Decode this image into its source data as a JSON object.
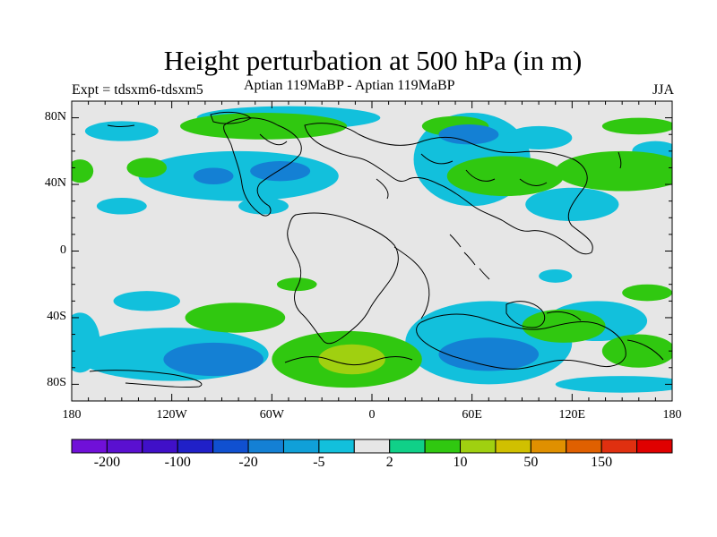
{
  "title": "Height perturbation at 500 hPa (in m)",
  "experiment": "Expt = tdsxm6-tdsxm5",
  "subtitle": "Aptian   119MaBP - Aptian   119MaBP",
  "season": "JJA",
  "map": {
    "type": "filled-contour",
    "lon_range": [
      -180,
      180
    ],
    "lat_range": [
      -90,
      90
    ],
    "lat_ticks": [
      {
        "lat": 80,
        "label": "80N"
      },
      {
        "lat": 40,
        "label": "40N"
      },
      {
        "lat": 0,
        "label": "0"
      },
      {
        "lat": -40,
        "label": "40S"
      },
      {
        "lat": -80,
        "label": "80S"
      }
    ],
    "lon_ticks": [
      {
        "lon": -180,
        "label": "180"
      },
      {
        "lon": -120,
        "label": "120W"
      },
      {
        "lon": -60,
        "label": "60W"
      },
      {
        "lon": 0,
        "label": "0"
      },
      {
        "lon": 60,
        "label": "60E"
      },
      {
        "lon": 120,
        "label": "120E"
      },
      {
        "lon": 180,
        "label": "180"
      }
    ],
    "background_color": "#e6e6e6",
    "positive_regions": [
      {
        "lon": -65,
        "lat": 75,
        "rlon": 50,
        "rlat": 8,
        "level": 10
      },
      {
        "lon": -135,
        "lat": 50,
        "rlon": 12,
        "rlat": 6,
        "level": 10
      },
      {
        "lon": -175,
        "lat": 48,
        "rlon": 8,
        "rlat": 7,
        "level": 10
      },
      {
        "lon": 50,
        "lat": 75,
        "rlon": 20,
        "rlat": 6,
        "level": 10
      },
      {
        "lon": 80,
        "lat": 45,
        "rlon": 35,
        "rlat": 12,
        "level": 10
      },
      {
        "lon": 150,
        "lat": 48,
        "rlon": 40,
        "rlat": 12,
        "level": 10
      },
      {
        "lon": 160,
        "lat": 75,
        "rlon": 22,
        "rlat": 5,
        "level": 10
      },
      {
        "lon": -82,
        "lat": -40,
        "rlon": 30,
        "rlat": 9,
        "level": 10
      },
      {
        "lon": -45,
        "lat": -20,
        "rlon": 12,
        "rlat": 4,
        "level": 10
      },
      {
        "lon": -15,
        "lat": -65,
        "rlon": 45,
        "rlat": 17,
        "level": 10
      },
      {
        "lon": -12,
        "lat": -65,
        "rlon": 20,
        "rlat": 9,
        "level": 50
      },
      {
        "lon": 115,
        "lat": -45,
        "rlon": 25,
        "rlat": 10,
        "level": 10
      },
      {
        "lon": 160,
        "lat": -60,
        "rlon": 22,
        "rlat": 10,
        "level": 10
      },
      {
        "lon": 165,
        "lat": -25,
        "rlon": 15,
        "rlat": 5,
        "level": 10
      }
    ],
    "negative_regions": [
      {
        "lon": -50,
        "lat": 80,
        "rlon": 55,
        "rlat": 7,
        "level": -5
      },
      {
        "lon": -150,
        "lat": 72,
        "rlon": 22,
        "rlat": 6,
        "level": -5
      },
      {
        "lon": -80,
        "lat": 45,
        "rlon": 60,
        "rlat": 15,
        "level": -5
      },
      {
        "lon": -55,
        "lat": 48,
        "rlon": 18,
        "rlat": 6,
        "level": -20
      },
      {
        "lon": -95,
        "lat": 45,
        "rlon": 12,
        "rlat": 5,
        "level": -20
      },
      {
        "lon": -150,
        "lat": 27,
        "rlon": 15,
        "rlat": 5,
        "level": -5
      },
      {
        "lon": -65,
        "lat": 27,
        "rlon": 15,
        "rlat": 5,
        "level": -5
      },
      {
        "lon": 60,
        "lat": 55,
        "rlon": 35,
        "rlat": 28,
        "level": -5
      },
      {
        "lon": 58,
        "lat": 70,
        "rlon": 18,
        "rlat": 6,
        "level": -20
      },
      {
        "lon": 100,
        "lat": 68,
        "rlon": 20,
        "rlat": 7,
        "level": -5
      },
      {
        "lon": 120,
        "lat": 28,
        "rlon": 28,
        "rlat": 10,
        "level": -5
      },
      {
        "lon": 170,
        "lat": 60,
        "rlon": 14,
        "rlat": 6,
        "level": -5
      },
      {
        "lon": -120,
        "lat": -62,
        "rlon": 58,
        "rlat": 16,
        "level": -5
      },
      {
        "lon": -95,
        "lat": -65,
        "rlon": 30,
        "rlat": 10,
        "level": -20
      },
      {
        "lon": -175,
        "lat": -55,
        "rlon": 12,
        "rlat": 18,
        "level": -5
      },
      {
        "lon": -135,
        "lat": -30,
        "rlon": 20,
        "rlat": 6,
        "level": -5
      },
      {
        "lon": 70,
        "lat": -55,
        "rlon": 50,
        "rlat": 25,
        "level": -5
      },
      {
        "lon": 70,
        "lat": -62,
        "rlon": 30,
        "rlat": 10,
        "level": -20
      },
      {
        "lon": 135,
        "lat": -42,
        "rlon": 30,
        "rlat": 12,
        "level": -5
      },
      {
        "lon": 110,
        "lat": -15,
        "rlon": 10,
        "rlat": 4,
        "level": -5
      },
      {
        "lon": 150,
        "lat": -80,
        "rlon": 40,
        "rlat": 5,
        "level": -5
      }
    ]
  },
  "colorbar": {
    "colors": [
      "#7010d8",
      "#5a10d0",
      "#4010c8",
      "#2020c8",
      "#1050d0",
      "#1480d4",
      "#10a0d8",
      "#12c0dc",
      "#e6e6e6",
      "#10d088",
      "#30c810",
      "#a0d010",
      "#d0c000",
      "#e09000",
      "#e06000",
      "#e03010",
      "#e00000"
    ],
    "labels": [
      {
        "boundary": 1,
        "text": "-200"
      },
      {
        "boundary": 3,
        "text": "-100"
      },
      {
        "boundary": 5,
        "text": "-20"
      },
      {
        "boundary": 7,
        "text": "-5"
      },
      {
        "boundary": 9,
        "text": "2"
      },
      {
        "boundary": 11,
        "text": "10"
      },
      {
        "boundary": 13,
        "text": "50"
      },
      {
        "boundary": 15,
        "text": "150"
      }
    ]
  }
}
